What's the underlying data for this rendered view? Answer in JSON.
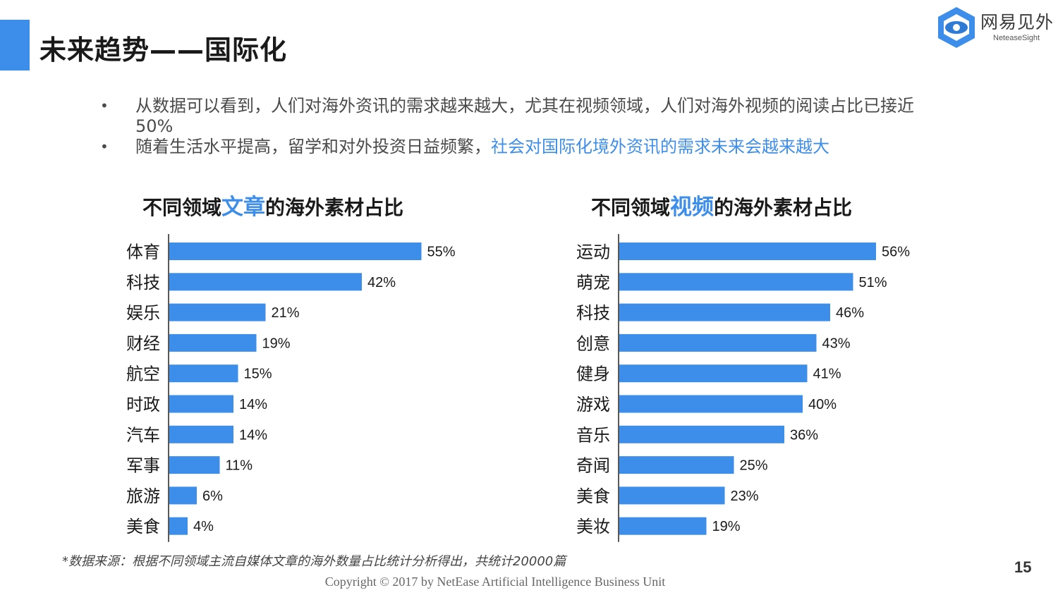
{
  "header": {
    "title": "未来趋势——国际化",
    "logo_text": "网易见外",
    "logo_sub": "NeteaseSight"
  },
  "bullets": [
    {
      "text": "从数据可以看到，人们对海外资讯的需求越来越大，尤其在视频领域，人们对海外视频的阅读占比已接近50%",
      "highlight": ""
    },
    {
      "text": "随着生活水平提高，留学和对外投资日益频繁，",
      "highlight": "社会对国际化境外资讯的需求未来会越来越大"
    }
  ],
  "chart_data": [
    {
      "type": "bar",
      "title_pre": "不同领域",
      "title_keyword": "文章",
      "title_post": "的海外素材占比",
      "categories": [
        "体育",
        "科技",
        "娱乐",
        "财经",
        "航空",
        "时政",
        "汽车",
        "军事",
        "旅游",
        "美食"
      ],
      "values": [
        55,
        42,
        21,
        19,
        15,
        14,
        14,
        11,
        6,
        4
      ],
      "unit": "%",
      "xlim": [
        0,
        100
      ],
      "orientation": "horizontal",
      "bar_color": "#3d8eea"
    },
    {
      "type": "bar",
      "title_pre": "不同领域",
      "title_keyword": "视频",
      "title_post": "的海外素材占比",
      "categories": [
        "运动",
        "萌宠",
        "科技",
        "创意",
        "健身",
        "游戏",
        "音乐",
        "奇闻",
        "美食",
        "美妆"
      ],
      "values": [
        56,
        51,
        46,
        43,
        41,
        40,
        36,
        25,
        23,
        19
      ],
      "unit": "%",
      "xlim": [
        0,
        100
      ],
      "orientation": "horizontal",
      "bar_color": "#3d8eea"
    }
  ],
  "footer": {
    "note": "*数据来源：根据不同领域主流自媒体文章的海外数量占比统计分析得出，共统计20000篇",
    "page_number": "15",
    "copyright": "Copyright © 2017 by NetEase Artificial Intelligence Business Unit"
  },
  "colors": {
    "accent": "#3d8eea"
  }
}
